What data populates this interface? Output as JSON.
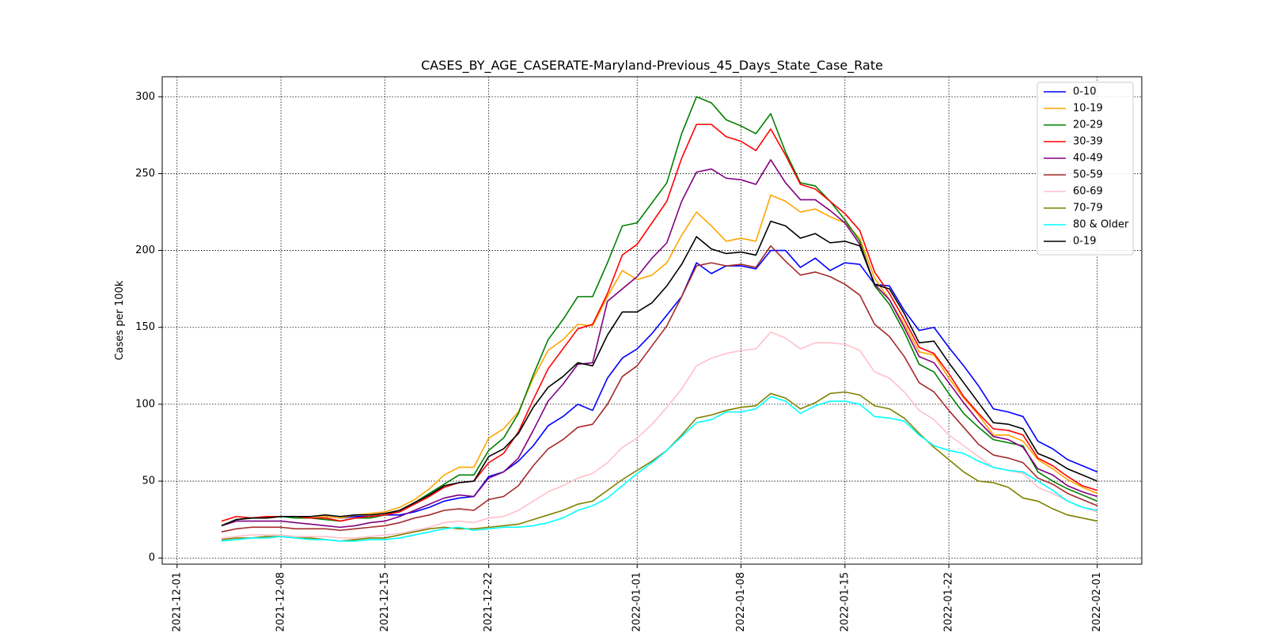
{
  "chart_data": {
    "type": "line",
    "title": "CASES_BY_AGE_CASERATE-Maryland-Previous_45_Days_State_Case_Rate",
    "xlabel": "",
    "ylabel": "Cases per 100k",
    "x_start": "2021-12-04",
    "x_ticks": [
      "2021-12-01",
      "2021-12-08",
      "2021-12-15",
      "2021-12-22",
      "2022-01-01",
      "2022-01-08",
      "2022-01-15",
      "2022-01-22",
      "2022-02-01"
    ],
    "xlim": [
      "2021-11-30",
      "2022-02-04"
    ],
    "y_ticks": [
      0,
      50,
      100,
      150,
      200,
      250,
      300
    ],
    "ylim": [
      -4,
      313
    ],
    "grid": true,
    "legend_position": "top-right",
    "series": [
      {
        "name": "0-10",
        "color": "#0000ff",
        "values": [
          21,
          25,
          26,
          26,
          27,
          27,
          27,
          27,
          26,
          27,
          27,
          28,
          28,
          30,
          33,
          37,
          39,
          40,
          53,
          56,
          63,
          73,
          86,
          92,
          100,
          96,
          117,
          130,
          136,
          146,
          158,
          170,
          192,
          185,
          190,
          190,
          188,
          200,
          200,
          189,
          195,
          187,
          192,
          191,
          178,
          177,
          161,
          148,
          150,
          137,
          125,
          112,
          97,
          95,
          92,
          76,
          71,
          64,
          60,
          56
        ]
      },
      {
        "name": "10-19",
        "color": "#ffa500",
        "values": [
          21,
          25,
          26,
          26,
          27,
          27,
          27,
          27,
          26,
          28,
          29,
          30,
          33,
          38,
          45,
          54,
          59,
          59,
          78,
          84,
          95,
          117,
          135,
          142,
          152,
          151,
          170,
          187,
          181,
          184,
          192,
          210,
          225,
          216,
          206,
          208,
          206,
          236,
          232,
          225,
          227,
          222,
          218,
          208,
          182,
          168,
          152,
          134,
          132,
          117,
          104,
          93,
          80,
          80,
          76,
          64,
          58,
          51,
          46,
          42
        ]
      },
      {
        "name": "20-29",
        "color": "#008000",
        "values": [
          21,
          25,
          26,
          26,
          27,
          26,
          26,
          25,
          24,
          26,
          26,
          28,
          31,
          36,
          42,
          48,
          54,
          54,
          70,
          78,
          94,
          119,
          142,
          155,
          170,
          170,
          192,
          216,
          218,
          231,
          244,
          276,
          300,
          296,
          285,
          281,
          276,
          289,
          264,
          244,
          242,
          232,
          220,
          206,
          177,
          165,
          147,
          126,
          121,
          107,
          94,
          85,
          77,
          75,
          73,
          56,
          50,
          45,
          41,
          37
        ]
      },
      {
        "name": "30-39",
        "color": "#ff0000",
        "values": [
          24,
          27,
          26,
          27,
          27,
          27,
          26,
          26,
          24,
          26,
          27,
          28,
          30,
          35,
          40,
          46,
          49,
          50,
          62,
          68,
          82,
          103,
          123,
          136,
          149,
          152,
          172,
          197,
          204,
          218,
          232,
          260,
          282,
          282,
          274,
          271,
          265,
          279,
          262,
          243,
          240,
          232,
          224,
          213,
          186,
          172,
          155,
          137,
          133,
          120,
          105,
          94,
          84,
          83,
          80,
          65,
          60,
          53,
          47,
          44
        ]
      },
      {
        "name": "40-49",
        "color": "#800080",
        "values": [
          21,
          24,
          24,
          24,
          24,
          23,
          22,
          21,
          20,
          21,
          23,
          24,
          27,
          31,
          35,
          39,
          41,
          40,
          52,
          56,
          65,
          83,
          102,
          113,
          126,
          127,
          167,
          175,
          183,
          195,
          205,
          232,
          251,
          253,
          247,
          246,
          243,
          259,
          244,
          233,
          233,
          226,
          218,
          204,
          178,
          168,
          150,
          131,
          127,
          114,
          101,
          89,
          79,
          77,
          72,
          58,
          54,
          47,
          43,
          40
        ]
      },
      {
        "name": "50-59",
        "color": "#a52a2a",
        "values": [
          17,
          19,
          20,
          20,
          20,
          19,
          19,
          19,
          18,
          19,
          20,
          21,
          23,
          26,
          28,
          31,
          32,
          31,
          38,
          40,
          47,
          60,
          71,
          77,
          85,
          87,
          100,
          118,
          125,
          138,
          151,
          170,
          190,
          192,
          190,
          191,
          189,
          203,
          193,
          184,
          186,
          183,
          178,
          171,
          152,
          144,
          131,
          114,
          108,
          96,
          85,
          74,
          67,
          65,
          62,
          52,
          48,
          42,
          38,
          34
        ]
      },
      {
        "name": "60-69",
        "color": "#ffc0cb",
        "values": [
          13,
          14,
          15,
          15,
          15,
          14,
          14,
          14,
          13,
          13,
          14,
          15,
          16,
          18,
          20,
          23,
          24,
          23,
          26,
          27,
          31,
          37,
          43,
          47,
          52,
          55,
          62,
          72,
          78,
          87,
          98,
          110,
          125,
          130,
          133,
          135,
          136,
          147,
          143,
          136,
          140,
          140,
          139,
          135,
          121,
          117,
          108,
          96,
          90,
          80,
          73,
          66,
          59,
          57,
          55,
          46,
          42,
          37,
          33,
          30
        ]
      },
      {
        "name": "70-79",
        "color": "#808000",
        "values": [
          12,
          13,
          13,
          14,
          14,
          13,
          13,
          12,
          11,
          12,
          13,
          13,
          15,
          17,
          19,
          20,
          19,
          19,
          20,
          21,
          22,
          25,
          28,
          31,
          35,
          37,
          44,
          51,
          57,
          63,
          70,
          80,
          91,
          93,
          96,
          98,
          99,
          107,
          104,
          97,
          101,
          107,
          108,
          106,
          99,
          97,
          91,
          81,
          72,
          64,
          56,
          50,
          49,
          46,
          39,
          37,
          32,
          28,
          26,
          24
        ]
      },
      {
        "name": "80 & Older",
        "color": "#00ffff",
        "values": [
          11,
          12,
          13,
          13,
          14,
          13,
          12,
          12,
          11,
          11,
          12,
          12,
          13,
          15,
          17,
          19,
          20,
          18,
          19,
          20,
          20,
          21,
          23,
          26,
          31,
          34,
          39,
          47,
          55,
          62,
          70,
          79,
          88,
          90,
          95,
          95,
          97,
          105,
          102,
          94,
          99,
          102,
          102,
          100,
          92,
          91,
          89,
          80,
          73,
          70,
          68,
          63,
          59,
          57,
          56,
          50,
          44,
          37,
          33,
          31
        ]
      },
      {
        "name": "0-19",
        "color": "#000000",
        "values": [
          21,
          25,
          26,
          26,
          27,
          27,
          27,
          28,
          27,
          28,
          28,
          29,
          31,
          36,
          41,
          47,
          49,
          50,
          66,
          71,
          81,
          98,
          111,
          118,
          127,
          125,
          145,
          160,
          160,
          166,
          177,
          191,
          209,
          201,
          198,
          199,
          197,
          219,
          216,
          208,
          211,
          205,
          206,
          203,
          178,
          175,
          159,
          140,
          141,
          127,
          114,
          101,
          88,
          87,
          84,
          68,
          64,
          58,
          54,
          50
        ]
      }
    ]
  }
}
